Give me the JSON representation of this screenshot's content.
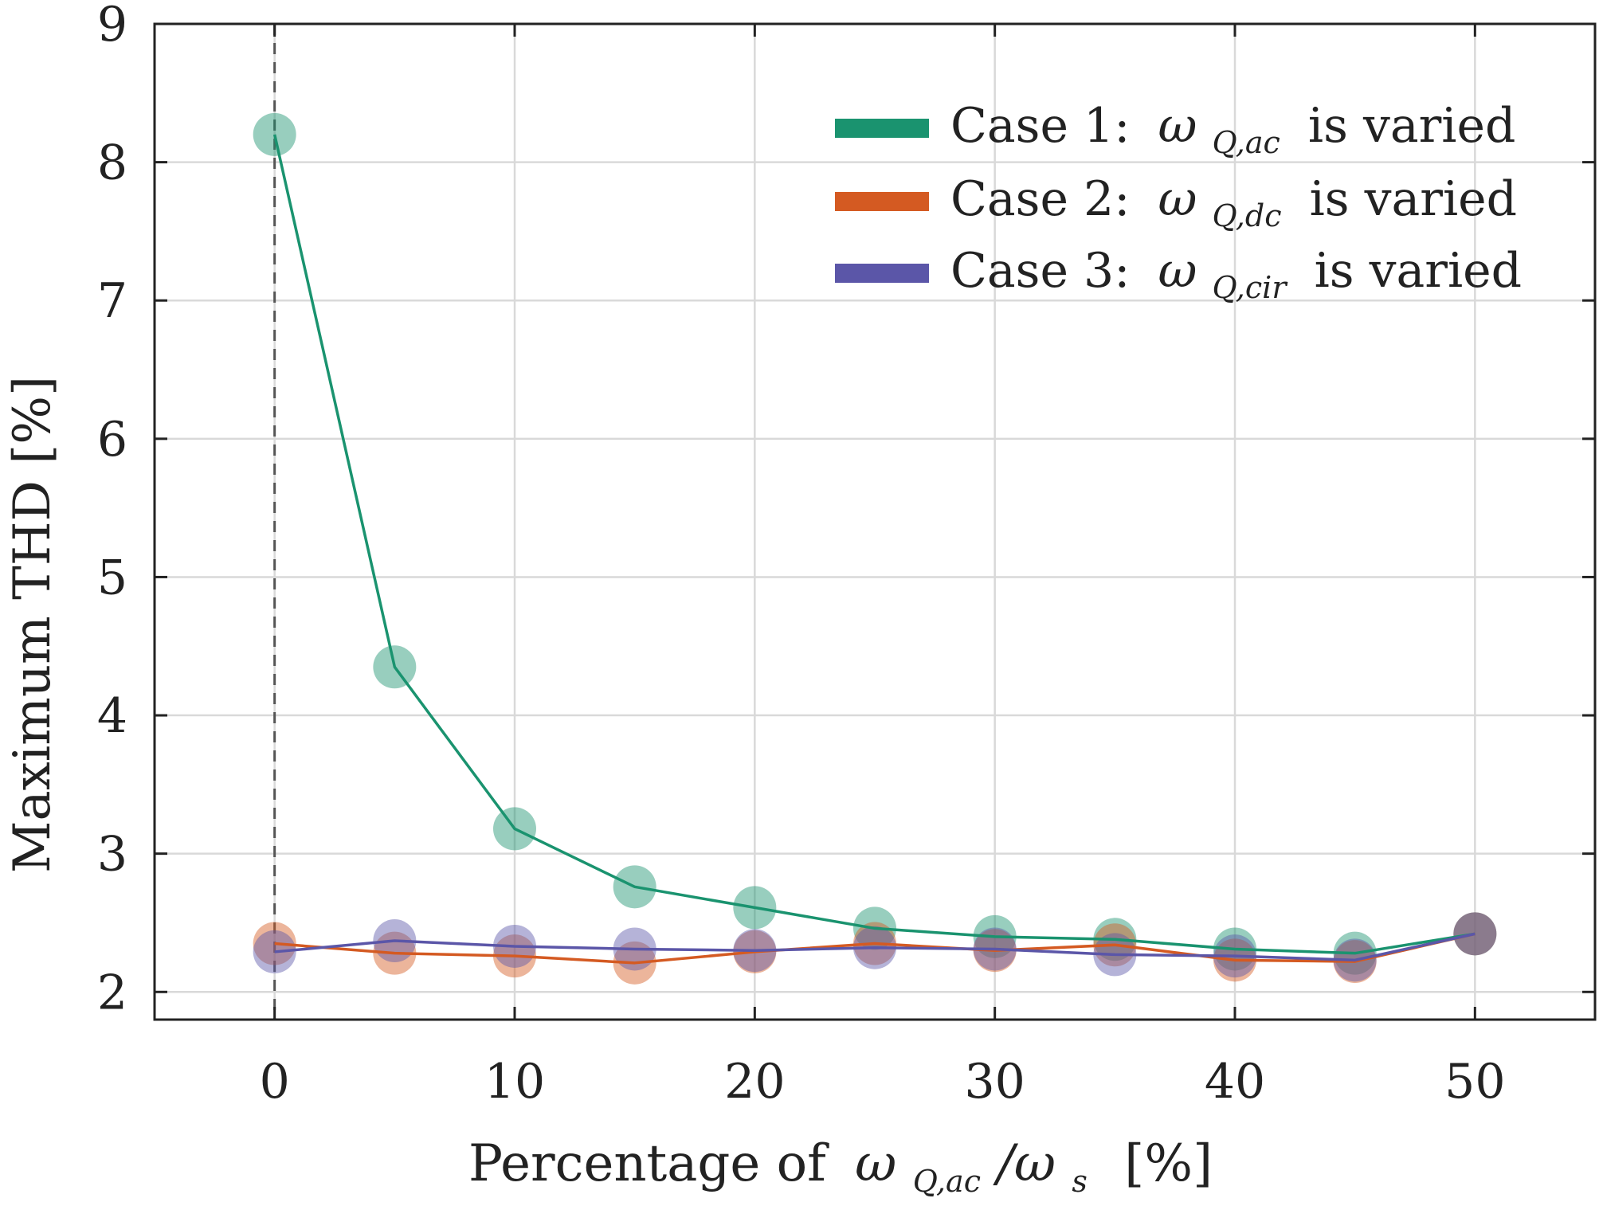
{
  "chart_data": {
    "type": "line",
    "xlabel": "Percentage of ωQ,ac/ωs [%]",
    "ylabel": "Maximum THD [%]",
    "xlim": [
      -5,
      55
    ],
    "ylim": [
      1.8,
      9
    ],
    "xticks": [
      0,
      10,
      20,
      30,
      40,
      50
    ],
    "yticks": [
      2,
      3,
      4,
      5,
      6,
      7,
      8,
      9
    ],
    "grid": true,
    "legend_position": "top-right",
    "reference_line": {
      "x": 0,
      "style": "dashed"
    },
    "x": [
      0,
      5,
      10,
      15,
      20,
      25,
      30,
      35,
      40,
      45,
      50
    ],
    "series": [
      {
        "name": "Case 1: ωQ,ac is varied",
        "color": "#1a936f",
        "values": [
          8.2,
          4.35,
          3.18,
          2.76,
          2.61,
          2.46,
          2.4,
          2.38,
          2.31,
          2.28,
          2.42
        ]
      },
      {
        "name": "Case 2: ωQ,dc is varied",
        "color": "#d45a22",
        "values": [
          2.35,
          2.28,
          2.26,
          2.21,
          2.29,
          2.35,
          2.3,
          2.34,
          2.23,
          2.22,
          2.42
        ]
      },
      {
        "name": "Case 3: ωQ,cir is varied",
        "color": "#5b56a8",
        "values": [
          2.29,
          2.37,
          2.33,
          2.31,
          2.3,
          2.32,
          2.31,
          2.27,
          2.26,
          2.23,
          2.42
        ]
      }
    ]
  },
  "axis_text": {
    "xlabel_prefix": "Percentage of",
    "xlabel_omega": "ω",
    "xlabel_sub": "Q,ac",
    "xlabel_slash": "/ω",
    "xlabel_sub2": "s",
    "xlabel_unit": "[%]",
    "ylabel": "Maximum THD [%]"
  },
  "legend": [
    {
      "prefix": "Case 1:",
      "omega": "ω",
      "sub": "Q,ac",
      "suffix": "is varied"
    },
    {
      "prefix": "Case 2:",
      "omega": "ω",
      "sub": "Q,dc",
      "suffix": "is varied"
    },
    {
      "prefix": "Case 3:",
      "omega": "ω",
      "sub": "Q,cir",
      "suffix": "is varied"
    }
  ]
}
